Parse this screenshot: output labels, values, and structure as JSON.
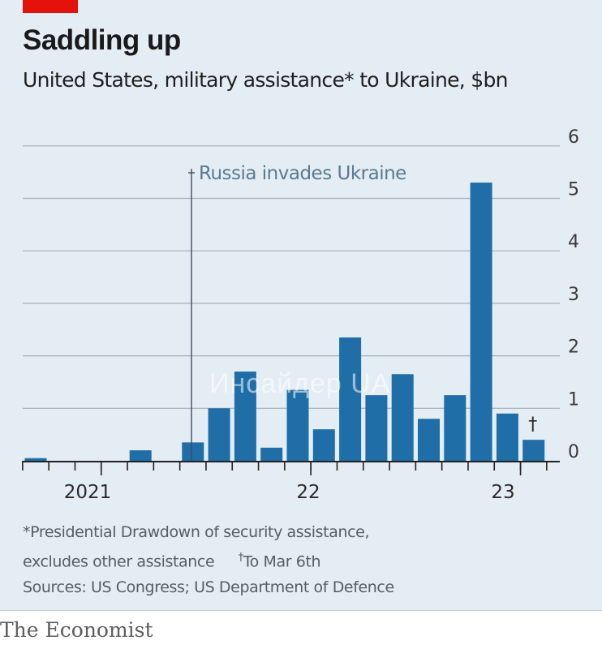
{
  "header": {
    "title": "Saddling up",
    "subtitle": "United States, military assistance* to Ukraine, $bn"
  },
  "chart_data": {
    "type": "bar",
    "title": "Saddling up",
    "subtitle": "United States, military assistance* to Ukraine, $bn",
    "ylim": [
      0,
      6
    ],
    "yticks": [
      0,
      1,
      2,
      3,
      4,
      5,
      6
    ],
    "y_axis_position": "right",
    "grid": true,
    "x_labels": [
      "2021",
      "22",
      "23"
    ],
    "values": [
      0.05,
      0,
      0,
      0,
      0.2,
      0,
      0.35,
      1.0,
      1.7,
      0.25,
      1.35,
      0.6,
      2.35,
      1.25,
      1.65,
      0.8,
      1.25,
      5.3,
      0.9,
      0.4
    ],
    "annotations": [
      {
        "label": "Russia invades Ukraine",
        "between_bars": [
          6,
          7
        ]
      },
      {
        "label": "†",
        "bar_index": 19
      }
    ]
  },
  "notes": {
    "footnote_line1": "*Presidential Drawdown of security assistance,",
    "footnote_line2": "excludes other assistance",
    "dagger_mark": "†",
    "dagger_text": "To Mar 6th",
    "sources": "Sources: US Congress; US Department of Defence"
  },
  "watermark": "Инсайдер UA",
  "brand": "The Economist",
  "colors": {
    "bar": "#1f6ea8",
    "background": "#e3edf3",
    "accent": "#e3120b",
    "grid": "#a4aeb5"
  }
}
